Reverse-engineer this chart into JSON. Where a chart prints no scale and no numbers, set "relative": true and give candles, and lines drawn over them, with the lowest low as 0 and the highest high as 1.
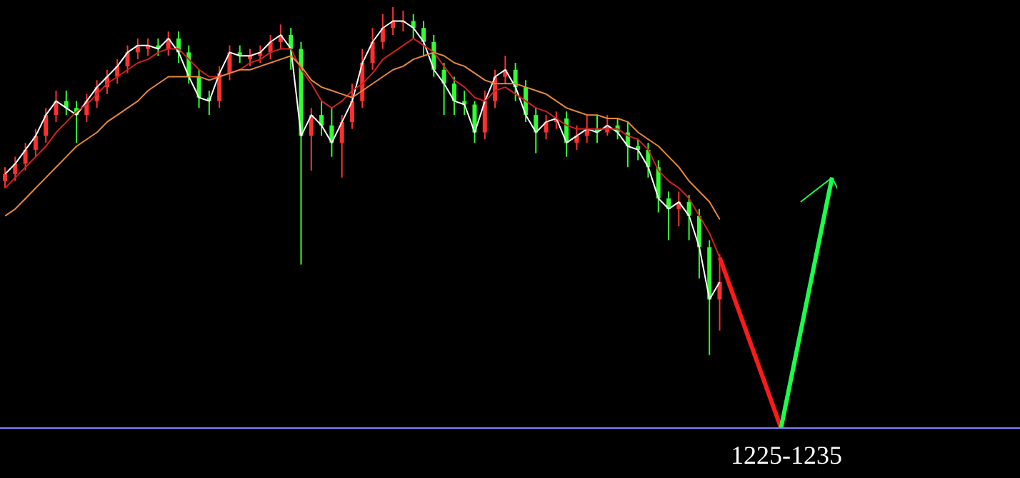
{
  "chart_data": {
    "type": "candlestick",
    "relative": true,
    "categories": [
      null,
      null,
      null,
      null,
      null,
      null,
      null,
      null,
      null,
      null,
      null,
      null,
      null,
      null,
      null,
      null,
      null,
      null,
      null,
      null,
      null,
      null,
      null,
      null,
      null,
      null,
      null,
      null,
      null,
      null,
      null,
      null,
      null,
      null,
      null,
      null,
      null,
      null,
      null,
      null,
      null,
      null,
      null,
      null,
      null,
      null,
      null,
      null,
      null,
      null,
      null,
      null,
      null,
      null,
      null,
      null,
      null,
      null,
      null,
      null,
      null,
      null,
      null,
      null,
      null,
      null,
      null,
      null,
      null,
      null,
      null,
      null,
      null,
      null,
      null,
      null,
      null,
      null,
      null,
      null,
      null,
      null
    ],
    "ohlc": [
      [
        0.5,
        0.54,
        0.48,
        0.52
      ],
      [
        0.52,
        0.57,
        0.5,
        0.55
      ],
      [
        0.55,
        0.61,
        0.53,
        0.59
      ],
      [
        0.59,
        0.65,
        0.57,
        0.63
      ],
      [
        0.63,
        0.71,
        0.61,
        0.69
      ],
      [
        0.69,
        0.76,
        0.67,
        0.73
      ],
      [
        0.73,
        0.76,
        0.69,
        0.71
      ],
      [
        0.71,
        0.73,
        0.61,
        0.69
      ],
      [
        0.69,
        0.75,
        0.67,
        0.73
      ],
      [
        0.73,
        0.79,
        0.71,
        0.77
      ],
      [
        0.77,
        0.82,
        0.75,
        0.8
      ],
      [
        0.8,
        0.85,
        0.78,
        0.83
      ],
      [
        0.83,
        0.89,
        0.81,
        0.87
      ],
      [
        0.87,
        0.91,
        0.85,
        0.89
      ],
      [
        0.88,
        0.91,
        0.86,
        0.89
      ],
      [
        0.89,
        0.91,
        0.86,
        0.88
      ],
      [
        0.88,
        0.93,
        0.86,
        0.91
      ],
      [
        0.91,
        0.93,
        0.84,
        0.87
      ],
      [
        0.87,
        0.89,
        0.78,
        0.8
      ],
      [
        0.8,
        0.82,
        0.71,
        0.74
      ],
      [
        0.74,
        0.76,
        0.69,
        0.73
      ],
      [
        0.73,
        0.83,
        0.71,
        0.81
      ],
      [
        0.81,
        0.89,
        0.79,
        0.87
      ],
      [
        0.87,
        0.89,
        0.84,
        0.86
      ],
      [
        0.85,
        0.88,
        0.83,
        0.86
      ],
      [
        0.86,
        0.89,
        0.84,
        0.87
      ],
      [
        0.87,
        0.92,
        0.85,
        0.9
      ],
      [
        0.9,
        0.95,
        0.88,
        0.92
      ],
      [
        0.92,
        0.94,
        0.82,
        0.88
      ],
      [
        0.88,
        0.9,
        0.26,
        0.63
      ],
      [
        0.63,
        0.71,
        0.53,
        0.69
      ],
      [
        0.69,
        0.73,
        0.63,
        0.66
      ],
      [
        0.66,
        0.71,
        0.57,
        0.61
      ],
      [
        0.61,
        0.69,
        0.51,
        0.67
      ],
      [
        0.67,
        0.78,
        0.65,
        0.73
      ],
      [
        0.73,
        0.88,
        0.71,
        0.84
      ],
      [
        0.84,
        0.94,
        0.82,
        0.9
      ],
      [
        0.9,
        0.98,
        0.88,
        0.94
      ],
      [
        0.94,
        1.0,
        0.92,
        0.96
      ],
      [
        0.96,
        0.99,
        0.93,
        0.96
      ],
      [
        0.96,
        0.98,
        0.91,
        0.94
      ],
      [
        0.94,
        0.96,
        0.86,
        0.9
      ],
      [
        0.9,
        0.92,
        0.8,
        0.82
      ],
      [
        0.82,
        0.84,
        0.69,
        0.78
      ],
      [
        0.78,
        0.8,
        0.69,
        0.73
      ],
      [
        0.73,
        0.76,
        0.69,
        0.72
      ],
      [
        0.72,
        0.73,
        0.61,
        0.64
      ],
      [
        0.64,
        0.76,
        0.62,
        0.73
      ],
      [
        0.73,
        0.82,
        0.71,
        0.8
      ],
      [
        0.8,
        0.86,
        0.78,
        0.82
      ],
      [
        0.82,
        0.84,
        0.73,
        0.77
      ],
      [
        0.77,
        0.79,
        0.67,
        0.69
      ],
      [
        0.69,
        0.71,
        0.58,
        0.64
      ],
      [
        0.64,
        0.69,
        0.62,
        0.67
      ],
      [
        0.67,
        0.7,
        0.65,
        0.68
      ],
      [
        0.68,
        0.7,
        0.57,
        0.61
      ],
      [
        0.61,
        0.66,
        0.59,
        0.63
      ],
      [
        0.63,
        0.69,
        0.61,
        0.65
      ],
      [
        0.65,
        0.69,
        0.61,
        0.64
      ],
      [
        0.64,
        0.69,
        0.63,
        0.66
      ],
      [
        0.66,
        0.68,
        0.62,
        0.64
      ],
      [
        0.64,
        0.67,
        0.54,
        0.6
      ],
      [
        0.6,
        0.62,
        0.56,
        0.59
      ],
      [
        0.59,
        0.61,
        0.51,
        0.54
      ],
      [
        0.54,
        0.56,
        0.41,
        0.45
      ],
      [
        0.45,
        0.47,
        0.33,
        0.42
      ],
      [
        0.42,
        0.47,
        0.37,
        0.44
      ],
      [
        0.44,
        0.46,
        0.33,
        0.4
      ],
      [
        0.4,
        0.42,
        0.22,
        0.31
      ],
      [
        0.31,
        0.33,
        0.0,
        0.16
      ],
      [
        0.16,
        0.29,
        0.07,
        0.21
      ],
      null,
      null,
      null,
      null,
      null,
      null,
      null,
      null,
      null,
      null,
      null
    ],
    "colors": [
      "#ff3030",
      "#ff3030",
      "#ff3030",
      "#ff3030",
      "#ff3030",
      "#ff3030",
      "#30ff30",
      "#30ff30",
      "#ff3030",
      "#ff3030",
      "#ff3030",
      "#ff3030",
      "#ff3030",
      "#ff3030",
      "#ff3030",
      "#30ff30",
      "#ff3030",
      "#30ff30",
      "#30ff30",
      "#30ff30",
      "#30ff30",
      "#ff3030",
      "#ff3030",
      "#30ff30",
      "#ff3030",
      "#ff3030",
      "#ff3030",
      "#ff3030",
      "#30ff30",
      "#30ff30",
      "#ff3030",
      "#30ff30",
      "#30ff30",
      "#ff3030",
      "#ff3030",
      "#ff3030",
      "#ff3030",
      "#ff3030",
      "#ff3030",
      "#ff3030",
      "#30ff30",
      "#30ff30",
      "#30ff30",
      "#30ff30",
      "#30ff30",
      "#30ff30",
      "#30ff30",
      "#ff3030",
      "#ff3030",
      "#ff3030",
      "#30ff30",
      "#30ff30",
      "#30ff30",
      "#ff3030",
      "#ff3030",
      "#30ff30",
      "#ff3030",
      "#ff3030",
      "#30ff30",
      "#ff3030",
      "#30ff30",
      "#30ff30",
      "#30ff30",
      "#30ff30",
      "#30ff30",
      "#30ff30",
      "#ff3030",
      "#30ff30",
      "#30ff30",
      "#30ff30",
      "#ff3030",
      null,
      null,
      null,
      null,
      null,
      null,
      null,
      null,
      null,
      null,
      null
    ],
    "series": [
      {
        "type": "line",
        "color": "#ffffff",
        "values": [
          0.52,
          0.55,
          0.59,
          0.63,
          0.69,
          0.73,
          0.71,
          0.69,
          0.73,
          0.77,
          0.8,
          0.83,
          0.87,
          0.89,
          0.89,
          0.88,
          0.91,
          0.87,
          0.8,
          0.74,
          0.73,
          0.81,
          0.87,
          0.86,
          0.86,
          0.87,
          0.9,
          0.92,
          0.88,
          0.63,
          0.69,
          0.66,
          0.61,
          0.67,
          0.73,
          0.84,
          0.9,
          0.94,
          0.96,
          0.96,
          0.94,
          0.9,
          0.82,
          0.78,
          0.73,
          0.72,
          0.64,
          0.73,
          0.8,
          0.82,
          0.77,
          0.69,
          0.64,
          0.67,
          0.68,
          0.61,
          0.63,
          0.65,
          0.64,
          0.66,
          0.64,
          0.6,
          0.59,
          0.54,
          0.45,
          0.42,
          0.44,
          0.4,
          0.31,
          0.16,
          0.21,
          null,
          null,
          null,
          null,
          null,
          null,
          null,
          null,
          null,
          null,
          null
        ]
      },
      {
        "type": "line",
        "color": "#d02020",
        "values": [
          0.48,
          0.51,
          0.54,
          0.57,
          0.6,
          0.64,
          0.67,
          0.7,
          0.72,
          0.75,
          0.78,
          0.8,
          0.82,
          0.84,
          0.85,
          0.87,
          0.88,
          0.88,
          0.85,
          0.82,
          0.8,
          0.8,
          0.81,
          0.82,
          0.84,
          0.85,
          0.87,
          0.88,
          0.88,
          0.82,
          0.78,
          0.73,
          0.71,
          0.73,
          0.76,
          0.78,
          0.81,
          0.85,
          0.87,
          0.89,
          0.91,
          0.89,
          0.87,
          0.83,
          0.79,
          0.77,
          0.74,
          0.73,
          0.76,
          0.77,
          0.75,
          0.73,
          0.71,
          0.7,
          0.68,
          0.66,
          0.65,
          0.65,
          0.65,
          0.65,
          0.65,
          0.63,
          0.62,
          0.59,
          0.53,
          0.5,
          0.48,
          0.45,
          0.4,
          0.35,
          0.28,
          null,
          null,
          null,
          null,
          null,
          null,
          null,
          null,
          null,
          null,
          null
        ]
      },
      {
        "type": "line",
        "color": "#e8883a",
        "values": [
          0.4,
          0.42,
          0.45,
          0.48,
          0.51,
          0.54,
          0.57,
          0.6,
          0.62,
          0.64,
          0.67,
          0.69,
          0.71,
          0.73,
          0.76,
          0.78,
          0.8,
          0.8,
          0.8,
          0.8,
          0.79,
          0.8,
          0.81,
          0.82,
          0.82,
          0.83,
          0.84,
          0.85,
          0.86,
          0.83,
          0.79,
          0.77,
          0.76,
          0.75,
          0.74,
          0.76,
          0.78,
          0.8,
          0.82,
          0.83,
          0.85,
          0.86,
          0.87,
          0.86,
          0.84,
          0.83,
          0.81,
          0.79,
          0.78,
          0.78,
          0.78,
          0.77,
          0.76,
          0.75,
          0.73,
          0.71,
          0.7,
          0.69,
          0.69,
          0.68,
          0.68,
          0.67,
          0.64,
          0.62,
          0.6,
          0.57,
          0.54,
          0.5,
          0.47,
          0.44,
          0.39,
          null,
          null,
          null,
          null,
          null,
          null,
          null,
          null,
          null,
          null,
          null
        ]
      },
      {
        "type": "line",
        "color": "#ff1a1a",
        "values": [
          null,
          null,
          null,
          null,
          null,
          null,
          null,
          null,
          null,
          null,
          null,
          null,
          null,
          null,
          null,
          null,
          null,
          null,
          null,
          null,
          null,
          null,
          null,
          null,
          null,
          null,
          null,
          null,
          null,
          null,
          null,
          null,
          null,
          null,
          null,
          null,
          null,
          null,
          null,
          null,
          null,
          null,
          null,
          null,
          null,
          null,
          null,
          null,
          null,
          null,
          null,
          null,
          null,
          null,
          null,
          null,
          null,
          null,
          null,
          null,
          null,
          null,
          null,
          null,
          null,
          null,
          null,
          null,
          null,
          null,
          0.28,
          null,
          null,
          null,
          null,
          null,
          -0.21,
          null,
          null,
          null,
          null,
          null
        ]
      },
      {
        "type": "line",
        "color": "#1aff4a",
        "values": [
          null,
          null,
          null,
          null,
          null,
          null,
          null,
          null,
          null,
          null,
          null,
          null,
          null,
          null,
          null,
          null,
          null,
          null,
          null,
          null,
          null,
          null,
          null,
          null,
          null,
          null,
          null,
          null,
          null,
          null,
          null,
          null,
          null,
          null,
          null,
          null,
          null,
          null,
          null,
          null,
          null,
          null,
          null,
          null,
          null,
          null,
          null,
          null,
          null,
          null,
          null,
          null,
          null,
          null,
          null,
          null,
          null,
          null,
          null,
          null,
          null,
          null,
          null,
          null,
          null,
          null,
          null,
          null,
          null,
          null,
          null,
          null,
          null,
          null,
          null,
          null,
          -0.21,
          null,
          null,
          null,
          null,
          0.51
        ]
      }
    ],
    "ref_lines": [
      {
        "axis": "y",
        "value": -0.21,
        "color": "#8080ff"
      }
    ],
    "annotations": [
      "1225-1235"
    ]
  }
}
